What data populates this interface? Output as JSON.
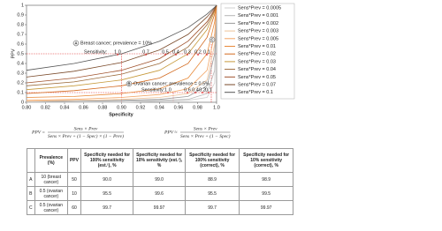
{
  "chart_data": {
    "type": "line",
    "xlabel": "Specificity",
    "ylabel": "PPV",
    "x": [
      0.8,
      0.85,
      0.9,
      0.94,
      0.97,
      0.99,
      0.998,
      1.0
    ],
    "xlim": [
      0.8,
      1.0
    ],
    "xticks": [
      {
        "value": 0.8,
        "label": "0.80"
      },
      0.82,
      0.84,
      0.86,
      0.88,
      {
        "value": 0.9,
        "label": "0.90"
      },
      0.92,
      0.94,
      0.96,
      0.98,
      {
        "value": 1.0,
        "label": "1.0"
      }
    ],
    "ylim": [
      0,
      1
    ],
    "yticks": [
      0,
      0.1,
      0.2,
      0.3,
      0.4,
      0.5,
      0.6,
      0.7,
      0.8,
      0.9,
      1
    ],
    "grid": false,
    "legend": "right",
    "series": [
      {
        "name": "Sens*Prev = 0.0005",
        "color": "#cfcfcf",
        "values": [
          0,
          0,
          0,
          0.01,
          0.02,
          0.05,
          0.2,
          1
        ]
      },
      {
        "name": "Sens*Prev = 0.001",
        "color": "#b5b5b5",
        "values": [
          0,
          0.01,
          0.01,
          0.02,
          0.03,
          0.09,
          0.33,
          1
        ]
      },
      {
        "name": "Sens*Prev = 0.002",
        "color": "#9a9a9a",
        "values": [
          0.01,
          0.01,
          0.02,
          0.03,
          0.06,
          0.17,
          0.5,
          1
        ]
      },
      {
        "name": "Sens*Prev = 0.003",
        "color": "#eec39a",
        "values": [
          0.01,
          0.02,
          0.03,
          0.05,
          0.09,
          0.23,
          0.6,
          1
        ]
      },
      {
        "name": "Sens*Prev = 0.005",
        "color": "#f2a566",
        "values": [
          0.02,
          0.03,
          0.05,
          0.08,
          0.14,
          0.33,
          0.71,
          1
        ]
      },
      {
        "name": "Sens*Prev = 0.01",
        "color": "#e88a3a",
        "values": [
          0.05,
          0.06,
          0.09,
          0.14,
          0.25,
          0.5,
          0.83,
          1
        ]
      },
      {
        "name": "Sens*Prev = 0.02",
        "color": "#d2691e",
        "values": [
          0.09,
          0.12,
          0.17,
          0.25,
          0.4,
          0.67,
          0.91,
          1
        ]
      },
      {
        "name": "Sens*Prev = 0.03",
        "color": "#c79a3c",
        "values": [
          0.13,
          0.17,
          0.23,
          0.33,
          0.5,
          0.75,
          0.94,
          1
        ]
      },
      {
        "name": "Sens*Prev = 0.04",
        "color": "#9b6a3a",
        "values": [
          0.17,
          0.21,
          0.29,
          0.4,
          0.57,
          0.8,
          0.95,
          1
        ]
      },
      {
        "name": "Sens*Prev = 0.05",
        "color": "#a0522d",
        "values": [
          0.2,
          0.25,
          0.33,
          0.45,
          0.63,
          0.83,
          0.96,
          1
        ]
      },
      {
        "name": "Sens*Prev = 0.07",
        "color": "#7a4a2a",
        "values": [
          0.26,
          0.32,
          0.41,
          0.54,
          0.7,
          0.88,
          0.97,
          1
        ]
      },
      {
        "name": "Sens*Prev = 0.1",
        "color": "#555555",
        "values": [
          0.33,
          0.4,
          0.5,
          0.63,
          0.77,
          0.91,
          0.98,
          1
        ]
      }
    ],
    "annotations": [
      {
        "letter": "A",
        "text": "Breast cancer; prevalence = 10%",
        "sensitivity_label": "Sensitivity:",
        "sensitivities": [
          "1.0",
          "0.7",
          "0.5",
          "0.4",
          "0.3",
          "0.2",
          "0.1"
        ]
      },
      {
        "letter": "B",
        "text": "Ovarian cancer; prevalence = 0.5%",
        "sensitivity_label": "Sensitivity:",
        "sensitivities": [
          "1.0",
          "0.6",
          "0.4",
          "0.2",
          "0.1"
        ]
      },
      {
        "letter": "C"
      }
    ]
  },
  "formulas": [
    {
      "lhs": "PPV =",
      "numerator": "Sens × Prev",
      "denominator": "Sens × Prev + (1 − Spec) × (1 − Prev)"
    },
    {
      "lhs": "PPV ≈",
      "numerator": "Sens × Prev",
      "denominator": "Sens × Prev + (1 − Spec)"
    }
  ],
  "table": {
    "header": [
      "",
      "Prevalence (%)",
      "PPV",
      "Specificity needed for 100% sensitivity (est.¹), %",
      "Specificity needed for 10% sensitivity (est.¹), %",
      "Specificity needed for 100% sensitivity (correct), %",
      "Specificity needed for 10% sensitivity (correct), %"
    ],
    "rows": [
      [
        "A",
        "10 (breast cancer)",
        "50",
        "90.0",
        "99.0",
        "88.9",
        "98.9"
      ],
      [
        "B",
        "0.5 (ovarian cancer)",
        "10",
        "95.5",
        "99.6",
        "95.5",
        "99.5"
      ],
      [
        "C",
        "0.5 (ovarian cancer)",
        "60",
        "99.7",
        "99.97",
        "99.7",
        "99.97"
      ]
    ]
  }
}
